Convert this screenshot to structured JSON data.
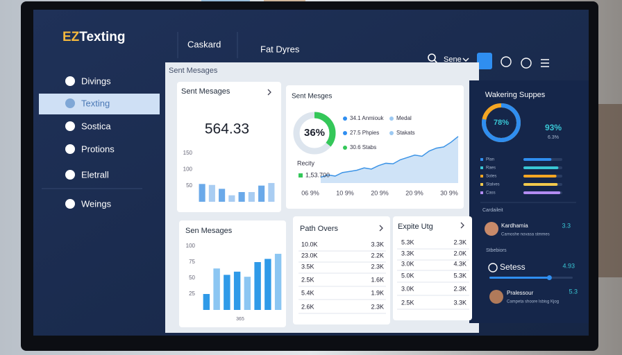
{
  "brand": {
    "mark": "EZ",
    "name": "Texting"
  },
  "top_tabs": [
    "Caskard",
    "Fat Dyres"
  ],
  "account": "Sene",
  "sidebar": [
    "Divings",
    "Texting",
    "Sostica",
    "Protions",
    "Eletrall",
    "Weings"
  ],
  "active_sidebar": 1,
  "breadcrumb": "Sent Mesages",
  "stat_card": {
    "title": "Sent Mesages",
    "value": "564.33",
    "color": "#6aa9e9",
    "values": [
      55,
      52,
      40,
      20,
      30,
      30,
      50,
      58
    ],
    "ylim": [
      0,
      150
    ],
    "yticks": [
      50,
      100,
      150
    ]
  },
  "overview_card": {
    "title": "Sent Mesges",
    "donut": {
      "value": 36,
      "label": "36%",
      "color": "#34c759"
    },
    "legend": [
      {
        "text": "34.1 Anmiouk",
        "color": "#2f8ef0"
      },
      {
        "text": "Medal",
        "color": "#9cc9f2"
      },
      {
        "text": "27.5 Phpies",
        "color": "#2f8ef0"
      },
      {
        "text": "Stakats",
        "color": "#9cc9f2"
      },
      {
        "text": "30.6 Stabs",
        "color": "#34c759"
      }
    ],
    "area": {
      "label": "Recity",
      "total": "1,53.700",
      "color": "#3b93e6",
      "categories": [
        "06 9%",
        "10 9%",
        "20 9%",
        "20 9%",
        "30 9%"
      ],
      "values": [
        10,
        14,
        12,
        18,
        20,
        22,
        26,
        24,
        30,
        34,
        33,
        40,
        44,
        48,
        46,
        55,
        60,
        62,
        70,
        80
      ],
      "ylim": [
        0,
        100
      ]
    }
  },
  "bar_card": {
    "title": "Sen Mesages",
    "color": "#2f9ae8",
    "light": "#8cc6f2",
    "values": [
      25,
      65,
      55,
      60,
      52,
      75,
      80,
      88
    ],
    "ylim": [
      0,
      100
    ],
    "yticks": [
      25,
      50,
      75,
      100
    ],
    "xlabel": "365"
  },
  "paths": {
    "title": "Path Overs",
    "rows": [
      [
        "10.0K",
        "3.3K"
      ],
      [
        "23.0K",
        "2.2K"
      ],
      [
        "3.5K",
        "2.3K"
      ],
      [
        "2.5K",
        "1.6K"
      ],
      [
        "5.4K",
        "1.9K"
      ],
      [
        "2.6K",
        "2.3K"
      ]
    ]
  },
  "expite": {
    "title": "Expite Utg",
    "rows": [
      [
        "5.3K",
        "2.3K"
      ],
      [
        "3.3K",
        "2.0K"
      ],
      [
        "3.0K",
        "4.3K"
      ],
      [
        "5.0K",
        "5.3K"
      ],
      [
        "3.0K",
        "2.3K"
      ],
      [
        "2.5K",
        "3.3K"
      ]
    ]
  },
  "side_panel": {
    "title": "Wakering Suppes",
    "donut": {
      "value": 78,
      "label": "78%",
      "color": "#2f8ef0",
      "rest": "#f5a623"
    },
    "headline": "93%",
    "headline_note": "6.3%",
    "bars": [
      {
        "name": "Plan",
        "value": 72,
        "color": "#2f8ef0"
      },
      {
        "name": "Raes",
        "value": 90,
        "color": "#39c6d4"
      },
      {
        "name": "Sotes",
        "value": 85,
        "color": "#f5a623"
      },
      {
        "name": "Stalves",
        "value": 88,
        "color": "#f2c94c"
      },
      {
        "name": "Cass",
        "value": 95,
        "color": "#b38cf2"
      }
    ],
    "section1": "Cardaileit",
    "person1": {
      "name": "Kardhamia",
      "note": "Carnoshe novasa stmmes",
      "score": "3.3"
    },
    "section2": "Stbebiors",
    "status": {
      "title": "Setess",
      "score": "4.93",
      "progress": 72
    },
    "person2": {
      "name": "Pralessour",
      "note": "Campeta shoore lsbisg Kjog",
      "score": "5.3"
    }
  }
}
